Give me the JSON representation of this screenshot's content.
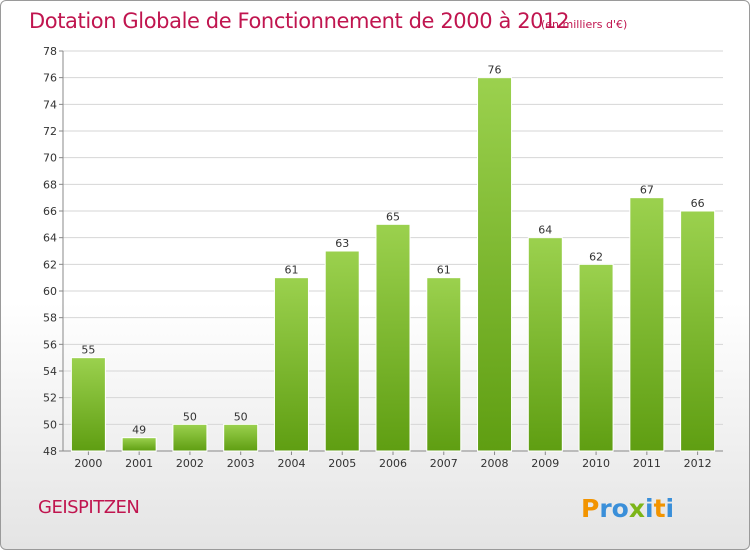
{
  "title": "Dotation Globale de Fonctionnement de 2000 à 2012",
  "subtitle": "(en milliers d'€)",
  "commune": "GEISPITZEN",
  "logo_text": "Proxiti",
  "colors": {
    "title": "#c0154f",
    "bar_top": "#9bd14e",
    "bar_bottom": "#5f9e12",
    "grid": "#d6d6d6"
  },
  "chart_data": {
    "type": "bar",
    "title": "Dotation Globale de Fonctionnement de 2000 à 2012",
    "subtitle": "(en milliers d'€)",
    "xlabel": "",
    "ylabel": "",
    "categories": [
      "2000",
      "2001",
      "2002",
      "2003",
      "2004",
      "2005",
      "2006",
      "2007",
      "2008",
      "2009",
      "2010",
      "2011",
      "2012"
    ],
    "values": [
      55,
      49,
      50,
      50,
      61,
      63,
      65,
      61,
      76,
      64,
      62,
      67,
      66
    ],
    "ylim": [
      48,
      78
    ],
    "yticks": [
      48,
      50,
      52,
      54,
      56,
      58,
      60,
      62,
      64,
      66,
      68,
      70,
      72,
      74,
      76,
      78
    ],
    "grid": true,
    "data_labels": true
  }
}
